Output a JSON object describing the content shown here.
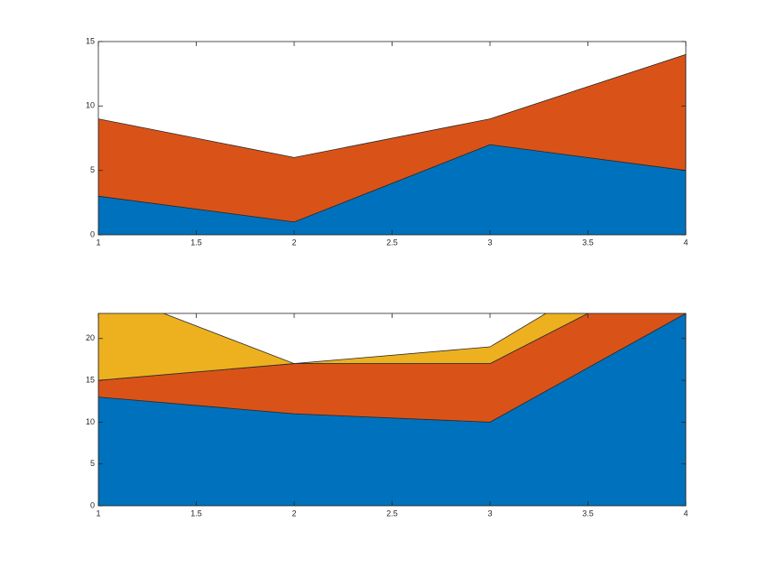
{
  "chart_data": [
    {
      "type": "area",
      "x": [
        1,
        2,
        3,
        4
      ],
      "series": [
        {
          "color": "#0072bd",
          "values": [
            3,
            1,
            7,
            5
          ]
        },
        {
          "color": "#d95319",
          "values": [
            6,
            5,
            2,
            9
          ]
        }
      ],
      "xlim": [
        1,
        4
      ],
      "xticks": [
        1,
        1.5,
        2,
        2.5,
        3,
        3.5,
        4
      ],
      "ylim": [
        0,
        15
      ],
      "yticks": [
        0,
        5,
        10,
        15
      ]
    },
    {
      "type": "area",
      "x": [
        1,
        2,
        3,
        4
      ],
      "series": [
        {
          "color": "#0072bd",
          "values": [
            13,
            11,
            10,
            23
          ]
        },
        {
          "color": "#d95319",
          "values": [
            2,
            6,
            7,
            6
          ]
        },
        {
          "color": "#edb120",
          "values": [
            11,
            0,
            2,
            4
          ]
        }
      ],
      "xlim": [
        1,
        4
      ],
      "xticks": [
        1,
        1.5,
        2,
        2.5,
        3,
        3.5,
        4
      ],
      "ylim": [
        0,
        23
      ],
      "yticks": [
        0,
        5,
        10,
        15,
        20
      ]
    }
  ]
}
